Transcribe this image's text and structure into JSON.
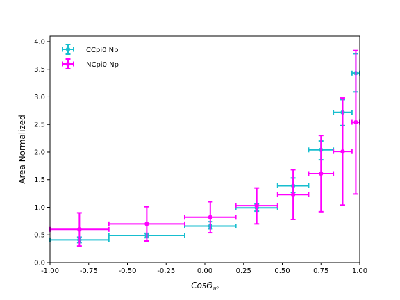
{
  "chart_data": {
    "type": "scatter",
    "xlabel_base": "CosΘ",
    "xlabel_sub": "π⁰",
    "ylabel": "Area Normalized",
    "xlim": [
      -1.0,
      1.0
    ],
    "ylim": [
      0.0,
      4.1
    ],
    "x_ticks": [
      "-1.00",
      "-0.75",
      "-0.50",
      "-0.25",
      "0.00",
      "0.25",
      "0.50",
      "0.75",
      "1.00"
    ],
    "y_ticks": [
      "0.0",
      "0.5",
      "1.0",
      "1.5",
      "2.0",
      "2.5",
      "3.0",
      "3.5",
      "4.0"
    ],
    "grid": false,
    "legend": "top-left",
    "series": [
      {
        "name": "CCpi0 Np",
        "color": "#17becf",
        "points": [
          {
            "x": -0.81,
            "xlo": -1.0,
            "xhi": -0.62,
            "y": 0.41,
            "ylo": 0.36,
            "yhi": 0.46
          },
          {
            "x": -0.375,
            "xlo": -0.62,
            "xhi": -0.13,
            "y": 0.49,
            "ylo": 0.45,
            "yhi": 0.53
          },
          {
            "x": 0.035,
            "xlo": -0.13,
            "xhi": 0.2,
            "y": 0.66,
            "ylo": 0.61,
            "yhi": 0.74
          },
          {
            "x": 0.335,
            "xlo": 0.2,
            "xhi": 0.47,
            "y": 0.99,
            "ylo": 0.93,
            "yhi": 1.06
          },
          {
            "x": 0.57,
            "xlo": 0.47,
            "xhi": 0.67,
            "y": 1.39,
            "ylo": 1.27,
            "yhi": 1.53
          },
          {
            "x": 0.75,
            "xlo": 0.67,
            "xhi": 0.83,
            "y": 2.04,
            "ylo": 1.86,
            "yhi": 2.2
          },
          {
            "x": 0.89,
            "xlo": 0.83,
            "xhi": 0.95,
            "y": 2.72,
            "ylo": 2.48,
            "yhi": 2.95
          },
          {
            "x": 0.975,
            "xlo": 0.95,
            "xhi": 1.0,
            "y": 3.43,
            "ylo": 3.09,
            "yhi": 3.78
          }
        ]
      },
      {
        "name": "NCpi0 Np",
        "color": "#ff00ff",
        "points": [
          {
            "x": -0.81,
            "xlo": -1.0,
            "xhi": -0.62,
            "y": 0.6,
            "ylo": 0.3,
            "yhi": 0.9
          },
          {
            "x": -0.375,
            "xlo": -0.62,
            "xhi": -0.13,
            "y": 0.7,
            "ylo": 0.39,
            "yhi": 1.01
          },
          {
            "x": 0.035,
            "xlo": -0.13,
            "xhi": 0.2,
            "y": 0.82,
            "ylo": 0.54,
            "yhi": 1.1
          },
          {
            "x": 0.335,
            "xlo": 0.2,
            "xhi": 0.47,
            "y": 1.03,
            "ylo": 0.7,
            "yhi": 1.35
          },
          {
            "x": 0.57,
            "xlo": 0.47,
            "xhi": 0.67,
            "y": 1.23,
            "ylo": 0.78,
            "yhi": 1.68
          },
          {
            "x": 0.75,
            "xlo": 0.67,
            "xhi": 0.83,
            "y": 1.61,
            "ylo": 0.92,
            "yhi": 2.3
          },
          {
            "x": 0.89,
            "xlo": 0.83,
            "xhi": 0.95,
            "y": 2.01,
            "ylo": 1.04,
            "yhi": 2.98
          },
          {
            "x": 0.975,
            "xlo": 0.95,
            "xhi": 1.0,
            "y": 2.54,
            "ylo": 1.24,
            "yhi": 3.84
          }
        ]
      }
    ]
  }
}
